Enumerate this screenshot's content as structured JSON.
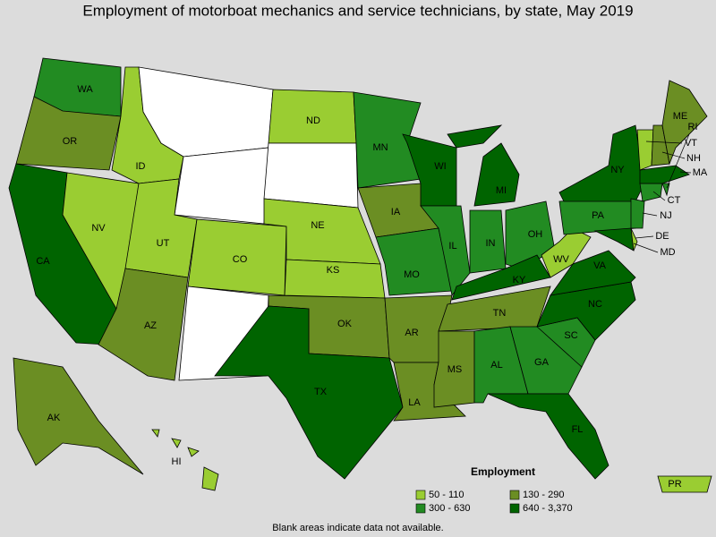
{
  "title": "Employment of motorboat mechanics and service technicians, by state, May 2019",
  "legend": {
    "title": "Employment",
    "items": [
      {
        "label": "50 - 110",
        "color": "#9acd32"
      },
      {
        "label": "130 - 290",
        "color": "#6b8e23"
      },
      {
        "label": "300 - 630",
        "color": "#228b22"
      },
      {
        "label": "640 - 3,370",
        "color": "#006400"
      }
    ]
  },
  "blank_color": "#ffffff",
  "states": [
    {
      "name": "WA",
      "employment": "300 - 630"
    },
    {
      "name": "OR",
      "employment": "130 - 290"
    },
    {
      "name": "CA",
      "employment": "640 - 3,370"
    },
    {
      "name": "NV",
      "employment": "50 - 110"
    },
    {
      "name": "ID",
      "employment": "50 - 110"
    },
    {
      "name": null,
      "employment": null
    },
    {
      "name": null,
      "employment": null
    },
    {
      "name": "UT",
      "employment": "50 - 110"
    },
    {
      "name": "CO",
      "employment": "50 - 110"
    },
    {
      "name": "AZ",
      "employment": "130 - 290"
    },
    {
      "name": null,
      "employment": null
    },
    {
      "name": "ND",
      "employment": "50 - 110"
    },
    {
      "name": null,
      "employment": null
    },
    {
      "name": "NE",
      "employment": "50 - 110"
    },
    {
      "name": "KS",
      "employment": "50 - 110"
    },
    {
      "name": "OK",
      "employment": "130 - 290"
    },
    {
      "name": "TX",
      "employment": "640 - 3,370"
    },
    {
      "name": "MN",
      "employment": "300 - 630"
    },
    {
      "name": "IA",
      "employment": "130 - 290"
    },
    {
      "name": "MO",
      "employment": "300 - 630"
    },
    {
      "name": "AR",
      "employment": "130 - 290"
    },
    {
      "name": "LA",
      "employment": "130 - 290"
    },
    {
      "name": "WI",
      "employment": "640 - 3,370"
    },
    {
      "name": "IL",
      "employment": "300 - 630"
    },
    {
      "name": "MI",
      "employment": "640 - 3,370"
    },
    {
      "name": "IN",
      "employment": "300 - 630"
    },
    {
      "name": "OH",
      "employment": "300 - 630"
    },
    {
      "name": "KY",
      "employment": "640 - 3,370"
    },
    {
      "name": "TN",
      "employment": "130 - 290"
    },
    {
      "name": "MS",
      "employment": "130 - 290"
    },
    {
      "name": "AL",
      "employment": "300 - 630"
    },
    {
      "name": "GA",
      "employment": "300 - 630"
    },
    {
      "name": "FL",
      "employment": "640 - 3,370"
    },
    {
      "name": "SC",
      "employment": "300 - 630"
    },
    {
      "name": "NC",
      "employment": "640 - 3,370"
    },
    {
      "name": "VA",
      "employment": "640 - 3,370"
    },
    {
      "name": "WV",
      "employment": "50 - 110"
    },
    {
      "name": "PA",
      "employment": "300 - 630"
    },
    {
      "name": "NY",
      "employment": "640 - 3,370"
    },
    {
      "name": "MD",
      "employment": "640 - 3,370"
    },
    {
      "name": "DE",
      "employment": "50 - 110"
    },
    {
      "name": "NJ",
      "employment": "300 - 630"
    },
    {
      "name": "CT",
      "employment": "300 - 630"
    },
    {
      "name": "RI",
      "employment": "300 - 630"
    },
    {
      "name": "MA",
      "employment": "640 - 3,370"
    },
    {
      "name": "VT",
      "employment": "50 - 110"
    },
    {
      "name": "NH",
      "employment": "130 - 290"
    },
    {
      "name": "ME",
      "employment": "130 - 290"
    },
    {
      "name": "AK",
      "employment": "130 - 290"
    },
    {
      "name": "HI",
      "employment": "50 - 110"
    },
    {
      "name": "PR",
      "employment": "50 - 110"
    }
  ],
  "note": "Blank areas indicate data not available."
}
